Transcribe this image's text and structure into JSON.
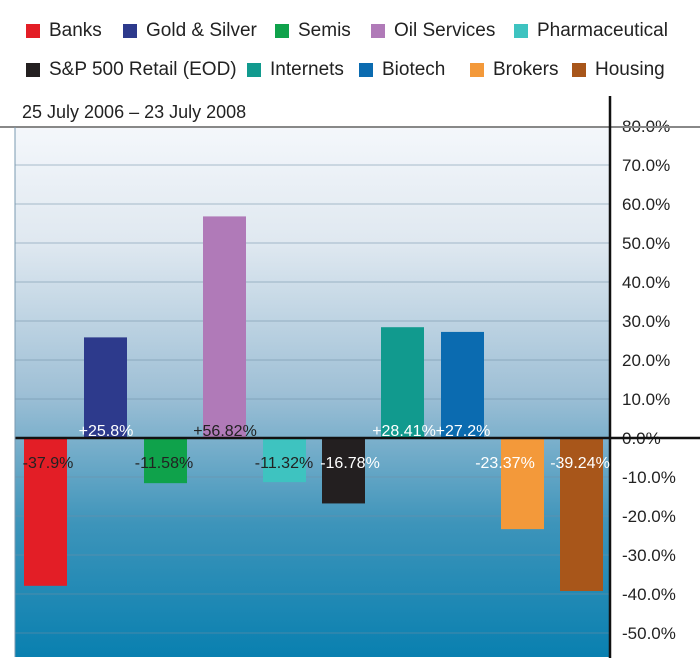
{
  "chart_data": {
    "type": "bar",
    "subtitle": "25 July 2006 – 23 July 2008",
    "categories": [
      "Banks",
      "Gold & Silver",
      "Oil Services",
      "Semis",
      "Pharmaceutical",
      "S&P 500 Retail (EOD)",
      "Internets",
      "Biotech",
      "Brokers",
      "Housing"
    ],
    "values": [
      -37.9,
      25.8,
      56.82,
      -11.58,
      -11.32,
      -16.78,
      28.41,
      27.2,
      -23.37,
      -39.24
    ],
    "value_labels": [
      "-37.9%",
      "+25.8%",
      "+56.82%",
      "-11.58%",
      "-11.32%",
      "-16.78%",
      "+28.41%",
      "+27.2%",
      "-23.37%",
      "-39.24%"
    ],
    "colors": [
      "#e31e26",
      "#2d3a8c",
      "#b07ab8",
      "#0fa24b",
      "#3ec3c0",
      "#231f20",
      "#119a8e",
      "#0b6bb0",
      "#f3993a",
      "#a8561a"
    ],
    "ylim": [
      -55,
      85
    ],
    "yticks": [
      80,
      70,
      60,
      50,
      40,
      30,
      20,
      10,
      0,
      -10,
      -20,
      -30,
      -40,
      -50
    ],
    "ytick_labels": [
      "80.0%",
      "70.0%",
      "60.0%",
      "50.0%",
      "40.0%",
      "30.0%",
      "20.0%",
      "10.0%",
      "0.0%",
      "-10.0%",
      "-20.0%",
      "-30.0%",
      "-40.0%",
      "-50.0%"
    ],
    "grid": true,
    "legend_position": "top",
    "legend": [
      {
        "label": "Banks",
        "color": "#e31e26"
      },
      {
        "label": "Gold & Silver",
        "color": "#2d3a8c"
      },
      {
        "label": "Semis",
        "color": "#0fa24b"
      },
      {
        "label": "Oil Services",
        "color": "#b07ab8"
      },
      {
        "label": "Pharmaceutical",
        "color": "#3ec3c0"
      },
      {
        "label": "S&P 500 Retail (EOD)",
        "color": "#231f20"
      },
      {
        "label": "Internets",
        "color": "#119a8e"
      },
      {
        "label": "Biotech",
        "color": "#0b6bb0"
      },
      {
        "label": "Brokers",
        "color": "#f3993a"
      },
      {
        "label": "Housing",
        "color": "#a8561a"
      }
    ]
  }
}
